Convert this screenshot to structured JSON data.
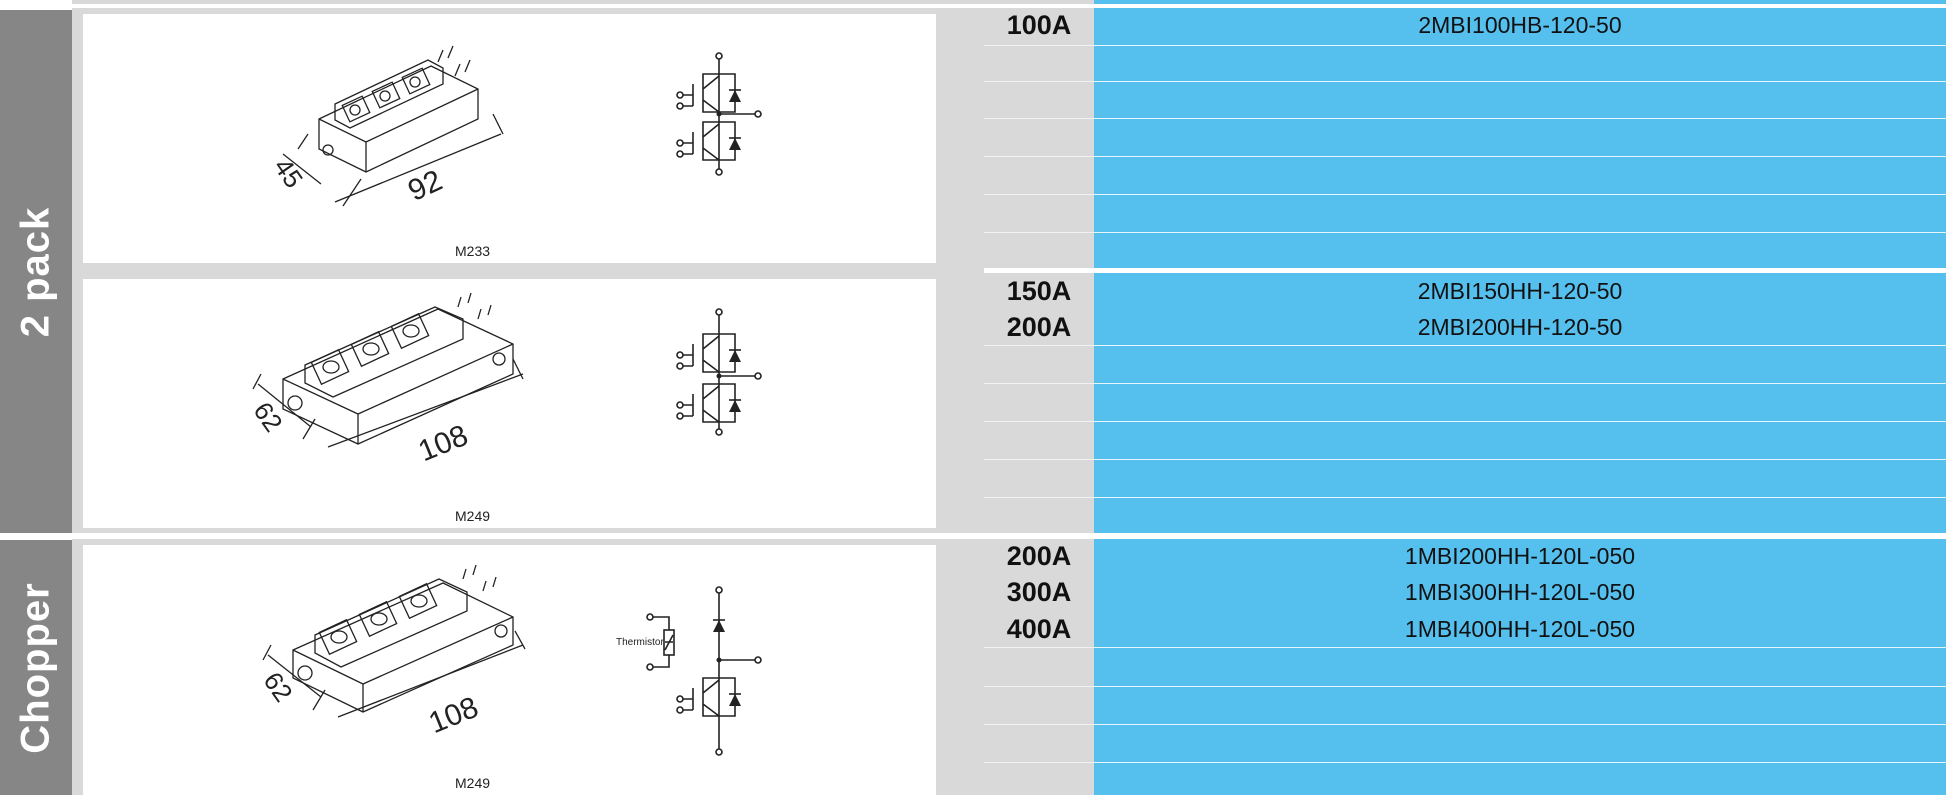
{
  "sections": [
    {
      "label": "2 pack"
    },
    {
      "label": "Chopper"
    }
  ],
  "modules": [
    {
      "code": "M233",
      "dims": [
        "45",
        "92"
      ]
    },
    {
      "code": "M249",
      "dims": [
        "62",
        "108"
      ]
    },
    {
      "code": "M249",
      "dims": [
        "62",
        "108"
      ],
      "thermistor_label": "Thermistor"
    }
  ],
  "rows": [
    {
      "amp": "100A",
      "part": "2MBI100HB-120-50"
    },
    {
      "amp": "150A",
      "part": "2MBI150HH-120-50"
    },
    {
      "amp": "200A",
      "part": "2MBI200HH-120-50"
    },
    {
      "amp": "200A",
      "part": "1MBI200HH-120L-050"
    },
    {
      "amp": "300A",
      "part": "1MBI300HH-120L-050"
    },
    {
      "amp": "400A",
      "part": "1MBI400HH-120L-050"
    }
  ],
  "colors": {
    "side": "#868686",
    "blue": "#55c0ee",
    "grey": "#d9d9d9"
  }
}
